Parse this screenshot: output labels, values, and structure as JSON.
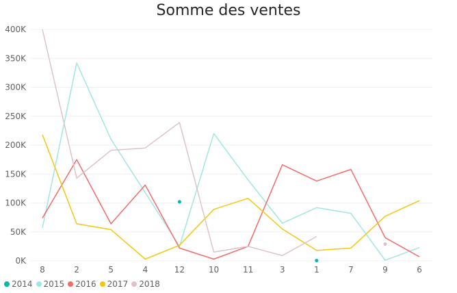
{
  "chart_data": {
    "type": "line",
    "title": "Somme des ventes",
    "xlabel": "",
    "ylabel": "",
    "categories": [
      "8",
      "2",
      "5",
      "4",
      "12",
      "10",
      "11",
      "3",
      "1",
      "7",
      "9",
      "6"
    ],
    "ylim": [
      0,
      400000
    ],
    "yticks": [
      "0K",
      "50K",
      "100K",
      "150K",
      "200K",
      "250K",
      "300K",
      "350K",
      "400K"
    ],
    "ytick_values": [
      0,
      50000,
      100000,
      150000,
      200000,
      250000,
      300000,
      350000,
      400000
    ],
    "grid": true,
    "legend_position": "bottom-left",
    "series": [
      {
        "name": "2014",
        "color": "#01b8aa",
        "values": [
          null,
          null,
          null,
          null,
          102000,
          null,
          null,
          null,
          500,
          null,
          null,
          null
        ]
      },
      {
        "name": "2015",
        "color": "#a0e6e0",
        "values": [
          57000,
          342000,
          210000,
          118000,
          25000,
          220000,
          140000,
          65000,
          92000,
          82000,
          1000,
          23000
        ]
      },
      {
        "name": "2016",
        "color": "#f26a6a",
        "values": [
          74000,
          175000,
          64000,
          131000,
          22000,
          3000,
          25000,
          166000,
          138000,
          158000,
          40000,
          7000
        ]
      },
      {
        "name": "2017",
        "color": "#f2c80f",
        "values": [
          218000,
          64000,
          54000,
          3000,
          27000,
          89000,
          108000,
          55000,
          18000,
          22000,
          77000,
          104000
        ]
      },
      {
        "name": "2018",
        "color": "#dcc3c8",
        "values": [
          400000,
          143000,
          191000,
          195000,
          239000,
          15000,
          25000,
          9000,
          42000,
          null,
          29000,
          null
        ]
      }
    ]
  }
}
